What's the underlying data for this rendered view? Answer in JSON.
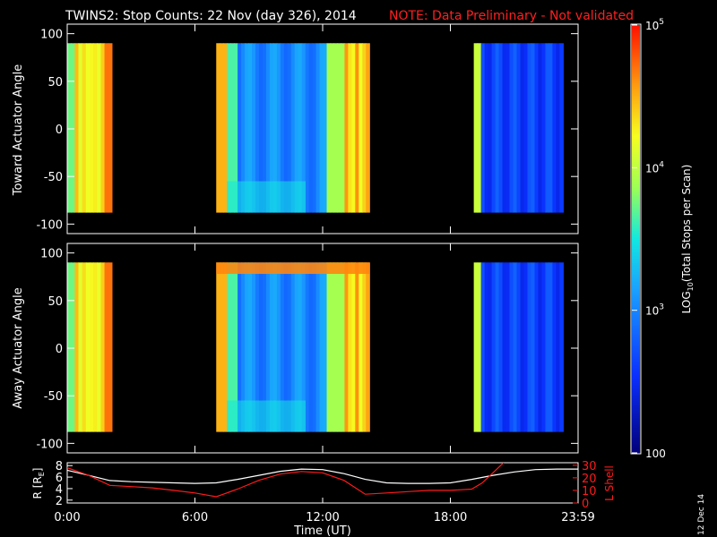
{
  "title": {
    "main": "TWINS2: Stop Counts: 22 Nov (day 326), 2014",
    "note": "NOTE: Data Preliminary - Not validated"
  },
  "colors": {
    "background": "#000000",
    "axes": "#ffffff",
    "note": "#ff2020",
    "lshell": "#ff1a1a",
    "r_line": "#ffffff"
  },
  "chart_data": [
    {
      "type": "heatmap",
      "panel": "toward",
      "ylabel": "Toward Actuator Angle",
      "ylim": [
        -110,
        110
      ],
      "yticks": [
        100,
        50,
        0,
        -50,
        -100
      ],
      "xlim": [
        0,
        24
      ],
      "angle_range": [
        -88,
        90
      ],
      "data_windows_hours": [
        [
          0,
          2.1
        ],
        [
          7.0,
          14.2
        ],
        [
          19.1,
          23.3
        ]
      ],
      "colorscale": "log",
      "zlim": [
        100,
        100000
      ]
    },
    {
      "type": "heatmap",
      "panel": "away",
      "ylabel": "Away Actuator Angle",
      "ylim": [
        -110,
        110
      ],
      "yticks": [
        100,
        50,
        0,
        -50,
        -100
      ],
      "xlim": [
        0,
        24
      ],
      "angle_range": [
        -88,
        90
      ],
      "data_windows_hours": [
        [
          0,
          2.1
        ],
        [
          7.0,
          14.2
        ],
        [
          19.1,
          23.3
        ]
      ],
      "colorscale": "log",
      "zlim": [
        100,
        100000
      ]
    },
    {
      "type": "line",
      "panel": "orbit",
      "xlabel": "Time (UT)",
      "xticks": [
        "0:00",
        "6:00",
        "12:00",
        "18:00",
        "23:59"
      ],
      "xlim": [
        0,
        24
      ],
      "ylabel_left": "R [R",
      "ylabel_left_sub": "E",
      "ylabel_left_end": "]",
      "ylim_left": [
        1.5,
        8.5
      ],
      "yticks_left": [
        2,
        4,
        6,
        8
      ],
      "ylabel_right": "L Shell",
      "ylim_right": [
        0,
        32
      ],
      "yticks_right": [
        0,
        10,
        20,
        30
      ],
      "series": [
        {
          "axis": "left",
          "x": [
            0,
            1,
            2,
            3,
            4,
            5,
            6,
            7,
            8,
            9,
            10,
            11,
            12,
            13,
            14,
            15,
            16,
            17,
            18,
            19,
            20,
            21,
            22,
            23,
            24
          ],
          "y": [
            7.2,
            6.3,
            5.4,
            5.2,
            5.1,
            5.0,
            4.9,
            5.0,
            5.6,
            6.3,
            7.0,
            7.4,
            7.3,
            6.6,
            5.6,
            5.0,
            4.9,
            4.9,
            5.0,
            5.6,
            6.3,
            6.9,
            7.3,
            7.4,
            7.4
          ]
        },
        {
          "axis": "right",
          "x": [
            0,
            1,
            2,
            3,
            4,
            5,
            6,
            7,
            8,
            9,
            10,
            11,
            12,
            13,
            14,
            15,
            16,
            17,
            18,
            19,
            19.5,
            20,
            20.5
          ],
          "y": [
            28,
            22,
            14,
            13,
            12,
            10,
            8,
            5,
            11,
            18,
            23,
            25,
            24,
            18,
            7,
            8,
            9,
            10,
            10,
            11,
            16,
            24,
            32
          ]
        }
      ]
    },
    {
      "type": "colorbar",
      "label_pre": "LOG",
      "label_sub": "10",
      "label_post": "(Total Stops per Scan)",
      "scale": "log",
      "zlim": [
        100,
        100000
      ],
      "ticks": [
        {
          "value": 100000,
          "base": "10",
          "exp": "5"
        },
        {
          "value": 10000,
          "base": "10",
          "exp": "4"
        },
        {
          "value": 1000,
          "base": "10",
          "exp": "3"
        },
        {
          "value": 100,
          "base": "100",
          "exp": ""
        }
      ]
    }
  ],
  "footer": {
    "date_stamp": "12 Dec 14"
  }
}
